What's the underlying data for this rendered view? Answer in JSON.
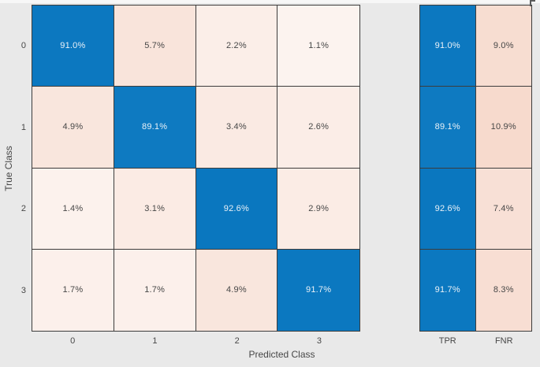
{
  "chart_data": {
    "type": "heatmap",
    "title": "",
    "xlabel": "Predicted Class",
    "ylabel": "True Class",
    "x_tick_labels": [
      "0",
      "1",
      "2",
      "3"
    ],
    "y_tick_labels": [
      "0",
      "1",
      "2",
      "3"
    ],
    "matrix_percent": [
      [
        91.0,
        5.7,
        2.2,
        1.1
      ],
      [
        4.9,
        89.1,
        3.4,
        2.6
      ],
      [
        1.4,
        3.1,
        92.6,
        2.9
      ],
      [
        1.7,
        1.7,
        4.9,
        91.7
      ]
    ],
    "matrix_labels": [
      [
        "91.0%",
        "5.7%",
        "2.2%",
        "1.1%"
      ],
      [
        "4.9%",
        "89.1%",
        "3.4%",
        "2.6%"
      ],
      [
        "1.4%",
        "3.1%",
        "92.6%",
        "2.9%"
      ],
      [
        "1.7%",
        "1.7%",
        "4.9%",
        "91.7%"
      ]
    ],
    "column_summary": {
      "column_labels": [
        "TPR",
        "FNR"
      ],
      "tpr_percent": [
        91.0,
        89.1,
        92.6,
        91.7
      ],
      "fnr_percent": [
        9.0,
        10.9,
        7.4,
        8.3
      ],
      "tpr_labels": [
        "91.0%",
        "89.1%",
        "92.6%",
        "91.7%"
      ],
      "fnr_labels": [
        "9.0%",
        "10.9%",
        "7.4%",
        "8.3%"
      ]
    },
    "legend_position": "none",
    "grid": "cell-borders",
    "colors": {
      "diagonal_base": "#0072bd",
      "off_diagonal_base": "#d95319",
      "cell_border": "#3c3c3c",
      "background": "#e9e9e9",
      "axis_text": "#474747",
      "light_cell_text": "#eaf1f7"
    }
  }
}
